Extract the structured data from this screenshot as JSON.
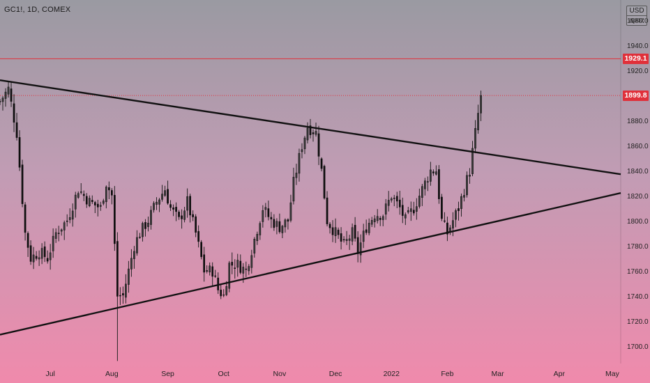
{
  "header": {
    "symbol": "GC1!, 1D, COMEX"
  },
  "scale": {
    "currency": "USD",
    "mode": "apoz"
  },
  "price_labels": {
    "resistance": "1929.1",
    "last": "1899.8"
  },
  "colors": {
    "bull": "#2a2a2a",
    "bear": "#111111",
    "trendline": "#111111",
    "resistance": "#e0303a",
    "last": "#e0303a",
    "text": "#222222"
  },
  "chart_data": {
    "type": "candlestick",
    "title": "GC1!, 1D, COMEX",
    "ylim": [
      1686,
      1976
    ],
    "yticks": [
      1700,
      1720,
      1740,
      1760,
      1780,
      1800,
      1820,
      1840,
      1860,
      1880,
      1900,
      1920,
      1940,
      1960
    ],
    "ytick_labels": [
      "1700.0",
      "1720.0",
      "1740.0",
      "1760.0",
      "1780.0",
      "1800.0",
      "1820.0",
      "1840.0",
      "1860.0",
      "1880.0",
      "1900.0",
      "1920.0",
      "1940.0",
      "1960.0"
    ],
    "xticks": [
      {
        "label": "Jul",
        "t": 18
      },
      {
        "label": "Aug",
        "t": 40
      },
      {
        "label": "Sep",
        "t": 60
      },
      {
        "label": "Oct",
        "t": 80
      },
      {
        "label": "Nov",
        "t": 100
      },
      {
        "label": "Dec",
        "t": 120
      },
      {
        "label": "2022",
        "t": 140
      },
      {
        "label": "Feb",
        "t": 160
      },
      {
        "label": "Mar",
        "t": 178
      },
      {
        "label": "Apr",
        "t": 200
      },
      {
        "label": "May",
        "t": 219
      }
    ],
    "xlim": [
      0,
      222
    ],
    "horizontal_lines": [
      {
        "value": 1929.1,
        "style": "solid"
      },
      {
        "value": 1899.8,
        "style": "dotted"
      }
    ],
    "trendlines": [
      {
        "from": [
          0,
          1912
        ],
        "to": [
          222,
          1837
        ]
      },
      {
        "from": [
          0,
          1709
        ],
        "to": [
          222,
          1822
        ]
      }
    ],
    "ohlc": []
  }
}
